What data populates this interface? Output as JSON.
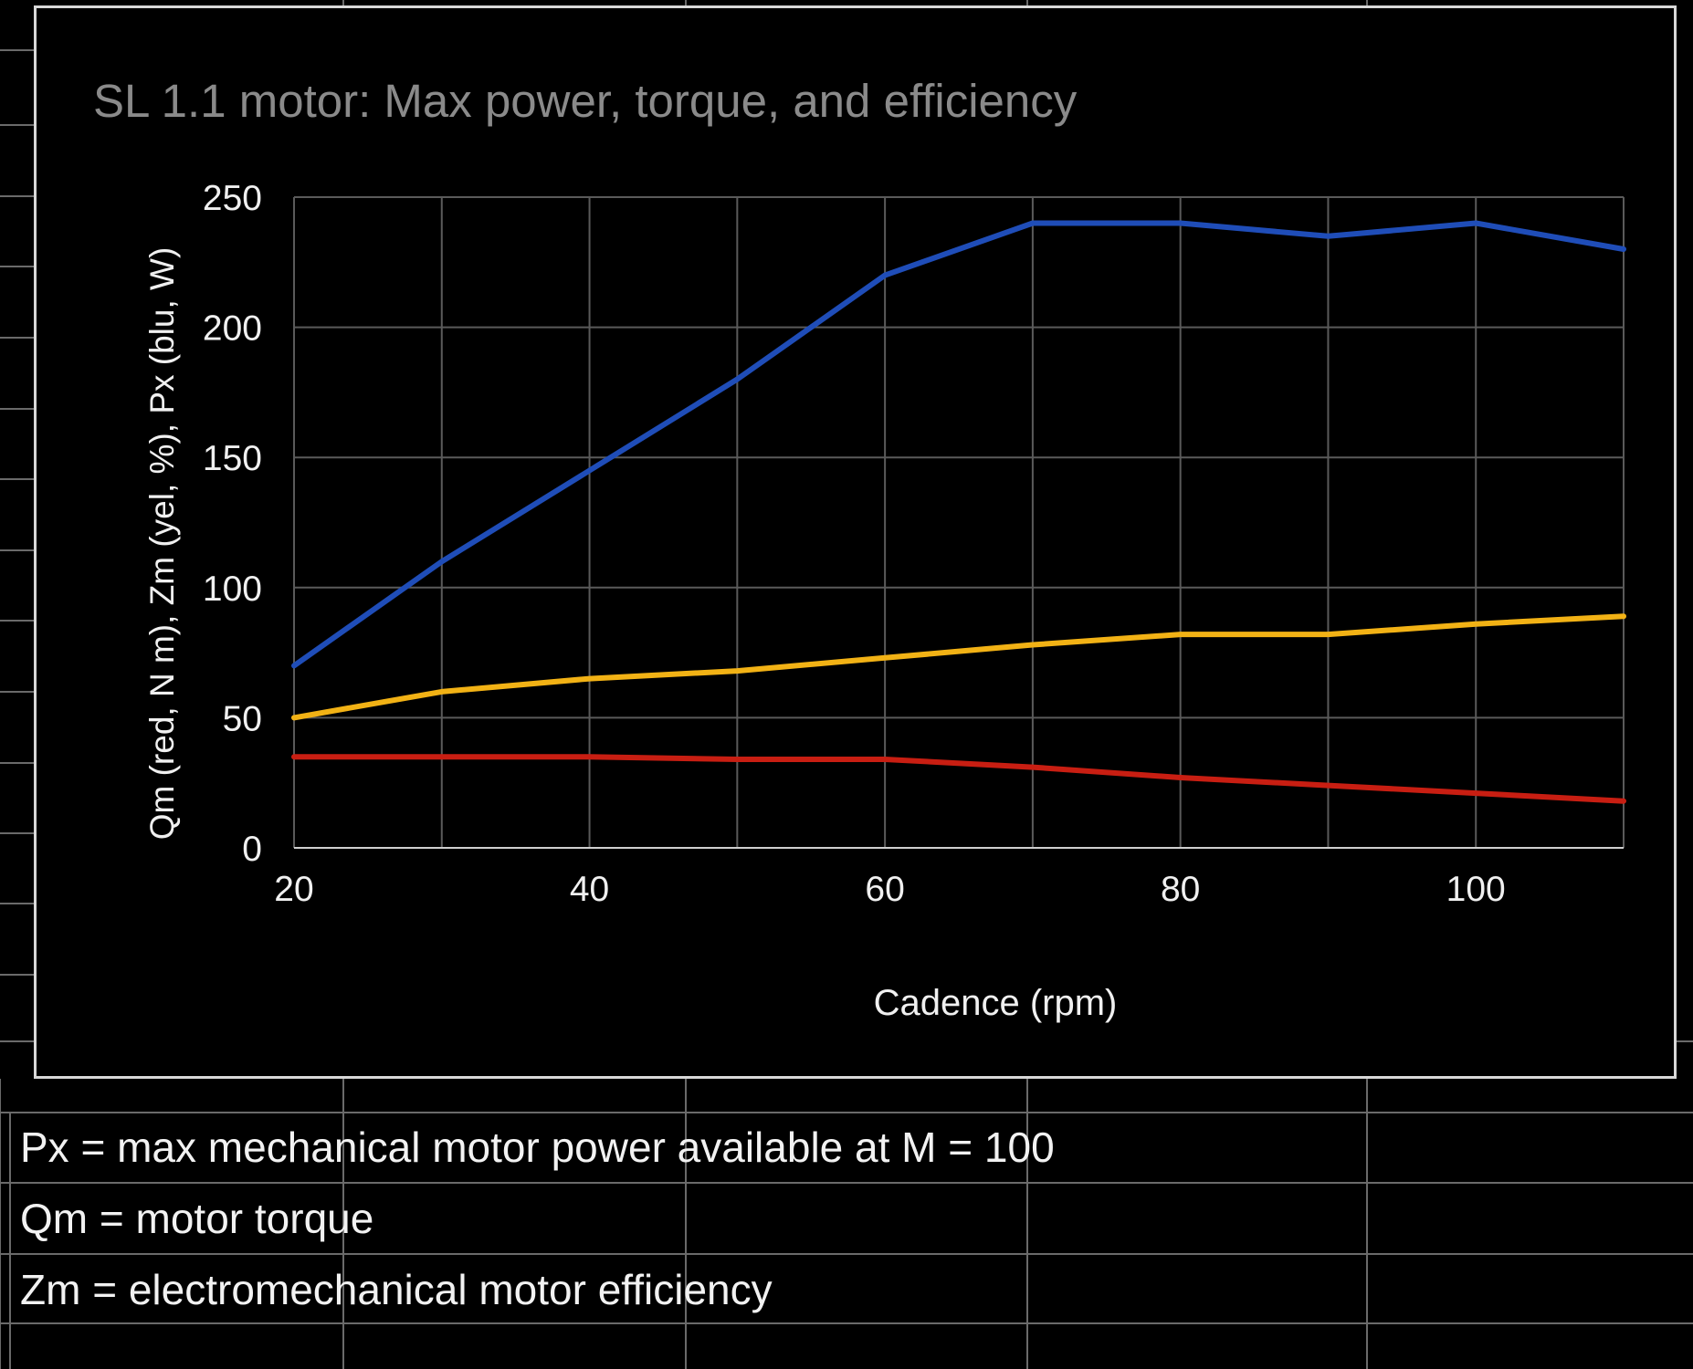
{
  "chart_data": {
    "type": "line",
    "title": "SL 1.1 motor: Max power, torque, and efficiency",
    "xlabel": "Cadence (rpm)",
    "ylabel": "Qm (red, N m), Zm (yel, %), Px (blu, W)",
    "x": [
      20,
      30,
      40,
      50,
      60,
      70,
      80,
      90,
      100,
      110
    ],
    "xlim": [
      20,
      110
    ],
    "ylim": [
      0,
      250
    ],
    "xticks": [
      "20",
      "40",
      "60",
      "80",
      "100"
    ],
    "yticks": [
      "0",
      "50",
      "100",
      "150",
      "200",
      "250"
    ],
    "grid": true,
    "series": [
      {
        "color": "#1f4db8",
        "values": [
          70,
          110,
          145,
          180,
          220,
          240,
          240,
          235,
          240,
          230
        ]
      },
      {
        "color": "#f2b215",
        "values": [
          50,
          60,
          65,
          68,
          73,
          78,
          82,
          82,
          86,
          89
        ]
      },
      {
        "color": "#c81e12",
        "values": [
          35,
          35,
          35,
          34,
          34,
          31,
          27,
          24,
          21,
          18
        ]
      }
    ]
  },
  "notes": [
    "Px = max mechanical motor power available at M = 100",
    "Qm = motor torque",
    "Zm = electromechanical motor efficiency"
  ]
}
